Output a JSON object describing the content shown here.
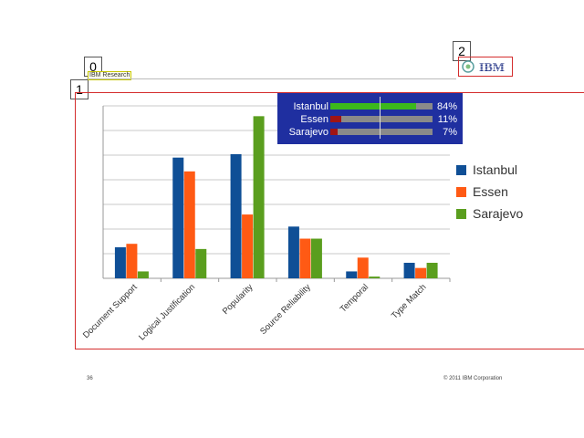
{
  "overlay_tags": [
    "0",
    "1",
    "2"
  ],
  "header": {
    "research_label": "IBM Research"
  },
  "ibm_logo": {
    "text": "IBM",
    "icon": "ibm-globe-logo"
  },
  "score_panel": {
    "rows": [
      {
        "name": "Istanbul",
        "percent": "84%",
        "value": 0.84,
        "color": "#3cb81c"
      },
      {
        "name": "Essen",
        "percent": "11%",
        "value": 0.11,
        "color": "#a01414"
      },
      {
        "name": "Sarajevo",
        "percent": "7%",
        "value": 0.07,
        "color": "#a01414"
      }
    ],
    "background": "#1f2fa0"
  },
  "chart_data": {
    "type": "bar",
    "categories": [
      "Document Support",
      "Logical Justification",
      "Popularity",
      "Source Reliability",
      "Temporal",
      "Type Match"
    ],
    "series": [
      {
        "name": "Istanbul",
        "color": "#0f4f96",
        "values": [
          0.18,
          0.7,
          0.72,
          0.3,
          0.04,
          0.09
        ]
      },
      {
        "name": "Essen",
        "color": "#ff5a14",
        "values": [
          0.2,
          0.62,
          0.37,
          0.23,
          0.12,
          0.06
        ]
      },
      {
        "name": "Sarajevo",
        "color": "#5a9e1e",
        "values": [
          0.04,
          0.17,
          0.94,
          0.23,
          0.01,
          0.09
        ]
      }
    ],
    "ylim": [
      0,
      1
    ],
    "grid": true,
    "legend": "right"
  },
  "footer": {
    "page_number": "36",
    "copyright": "© 2011 IBM Corporation"
  }
}
